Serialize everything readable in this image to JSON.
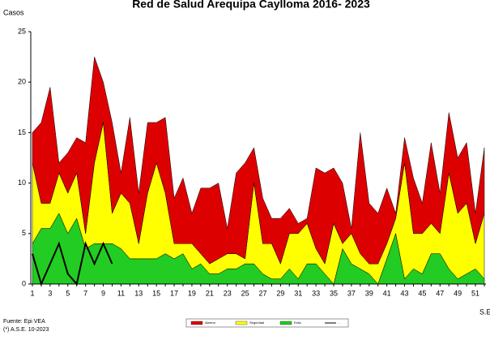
{
  "chart_data": {
    "type": "stacked-area",
    "title": "Red de Salud Arequipa Caylloma 2016- 2023",
    "y_label": "Casos",
    "x_label": "S.E",
    "source": "Fuente: Epi VEA",
    "note": "(*) A.S.E. 10-2023",
    "categories": [
      1,
      null,
      3,
      null,
      5,
      null,
      7,
      null,
      9,
      null,
      11,
      null,
      13,
      null,
      15,
      null,
      17,
      null,
      19,
      null,
      21,
      null,
      23,
      null,
      25,
      null,
      27,
      null,
      29,
      null,
      31,
      null,
      33,
      null,
      35,
      null,
      37,
      null,
      39,
      null,
      41,
      null,
      43,
      null,
      45,
      null,
      47,
      null,
      49,
      null,
      51,
      null
    ],
    "ylim": [
      0,
      25
    ],
    "yticks": [
      0,
      5,
      10,
      15,
      20,
      25
    ],
    "series": [
      {
        "name": "Exito",
        "color": "#22cc22",
        "values": [
          4,
          5.5,
          5.5,
          7,
          5,
          6.5,
          3.5,
          4,
          4,
          4,
          3.5,
          2.5,
          2.5,
          2.5,
          2.5,
          3,
          2.5,
          3,
          1.5,
          2,
          1,
          1,
          1.5,
          1.5,
          2,
          2,
          1,
          0.5,
          0.5,
          1.5,
          0.5,
          2,
          2,
          1,
          0,
          3.5,
          2,
          1.5,
          1,
          0,
          2.5,
          5,
          0.5,
          1.5,
          1,
          3,
          3,
          1.5,
          0.5,
          1,
          1.5,
          0.5
        ]
      },
      {
        "name": "Seguridad",
        "color": "#ffff00",
        "values": [
          8,
          2.5,
          2.5,
          4,
          4,
          4.5,
          1.5,
          8,
          12,
          3,
          5.5,
          5.5,
          1.5,
          6.5,
          9.5,
          6,
          1.5,
          1,
          2.5,
          1,
          1,
          1.5,
          1.5,
          1.5,
          0.5,
          8,
          3,
          3.5,
          1.5,
          3.5,
          4.5,
          4,
          1.5,
          1,
          6,
          0.5,
          3,
          1.5,
          1,
          2,
          1.5,
          1.5,
          11.5,
          3.5,
          4,
          3,
          2,
          9.5,
          6.5,
          7,
          2.5,
          6.5
        ]
      },
      {
        "name": "Alarma",
        "color": "#dd0000",
        "values": [
          3,
          8,
          11.5,
          1,
          4,
          3.5,
          9,
          10.5,
          4,
          9,
          2,
          8.5,
          5,
          7,
          4,
          7.5,
          4.5,
          6.5,
          3,
          6.5,
          7.5,
          7.5,
          2.5,
          8,
          9.5,
          3.5,
          4.5,
          2.5,
          4.5,
          2.5,
          1,
          0.5,
          8,
          9,
          5.5,
          6,
          0.5,
          12,
          6,
          5,
          5.5,
          0.5,
          2.5,
          5.5,
          3,
          8,
          4,
          6,
          5.5,
          6,
          3,
          6.5
        ]
      }
    ],
    "line": {
      "name": "-",
      "color": "#000000",
      "values": [
        3,
        0,
        2,
        4,
        1,
        0,
        4,
        2,
        4,
        2,
        null,
        null,
        null,
        null,
        null,
        null,
        null,
        null,
        null,
        null,
        null,
        null,
        null,
        null,
        null,
        null,
        null,
        null,
        null,
        null,
        null,
        null,
        null,
        null,
        null,
        null,
        null,
        null,
        null,
        null,
        null,
        null,
        null,
        null,
        null,
        null,
        null,
        null,
        null,
        null,
        null,
        null
      ]
    }
  }
}
